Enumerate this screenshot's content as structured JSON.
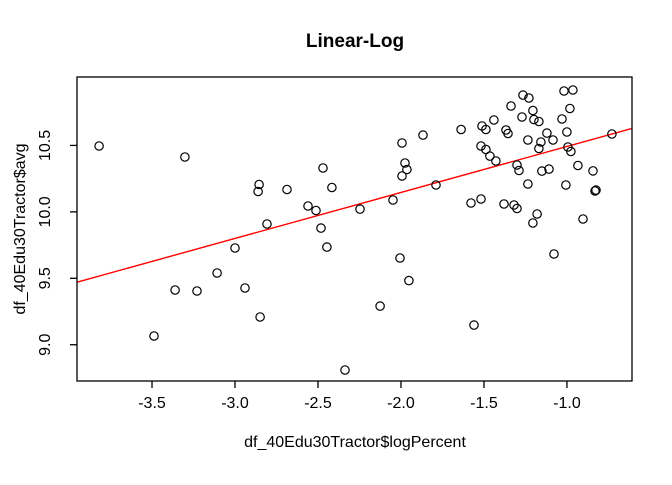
{
  "page": {
    "background": "#ffffff"
  },
  "chart_data": {
    "type": "scatter",
    "title": "Linear-Log",
    "xlabel": "df_40Edu30Tractor$logPercent",
    "ylabel": "df_40Edu30Tractor$avg",
    "xlim": [
      -3.952,
      -0.608
    ],
    "ylim": [
      8.727,
      11.015
    ],
    "grid": false,
    "legend": "none",
    "xticks": [
      {
        "value": -3.5,
        "label": "-3.5"
      },
      {
        "value": -3.0,
        "label": "-3.0"
      },
      {
        "value": -2.5,
        "label": "-2.5"
      },
      {
        "value": -2.0,
        "label": "-2.0"
      },
      {
        "value": -1.5,
        "label": "-1.5"
      },
      {
        "value": -1.0,
        "label": "-1.0"
      }
    ],
    "yticks": [
      {
        "value": 9.0,
        "label": "9.0"
      },
      {
        "value": 9.5,
        "label": "9.5"
      },
      {
        "value": 10.0,
        "label": "10.0"
      },
      {
        "value": 10.5,
        "label": "10.5"
      }
    ],
    "point_style": {
      "shape": "open-circle",
      "radius": 4.2,
      "stroke": "#000000"
    },
    "box_color": "#000000",
    "regression_line": {
      "slope": 0.346,
      "intercept": 10.838,
      "color": "#ff0000"
    },
    "points": [
      {
        "x": -3.819,
        "y": 10.496
      },
      {
        "x": -3.302,
        "y": 10.413
      },
      {
        "x": -3.488,
        "y": 9.066
      },
      {
        "x": -3.361,
        "y": 9.412
      },
      {
        "x": -3.229,
        "y": 9.404
      },
      {
        "x": -3.108,
        "y": 9.54
      },
      {
        "x": -3.0,
        "y": 9.728
      },
      {
        "x": -2.94,
        "y": 9.427
      },
      {
        "x": -2.855,
        "y": 10.206
      },
      {
        "x": -2.861,
        "y": 10.153
      },
      {
        "x": -2.849,
        "y": 9.209
      },
      {
        "x": -2.807,
        "y": 9.909
      },
      {
        "x": -2.687,
        "y": 10.168
      },
      {
        "x": -2.56,
        "y": 10.044
      },
      {
        "x": -2.512,
        "y": 10.01
      },
      {
        "x": -2.482,
        "y": 9.878
      },
      {
        "x": -2.47,
        "y": 10.33
      },
      {
        "x": -2.446,
        "y": 9.735
      },
      {
        "x": -2.416,
        "y": 10.183
      },
      {
        "x": -2.337,
        "y": 8.81
      },
      {
        "x": -2.247,
        "y": 10.021
      },
      {
        "x": -2.126,
        "y": 9.291
      },
      {
        "x": -2.048,
        "y": 10.089
      },
      {
        "x": -2.006,
        "y": 9.653
      },
      {
        "x": -1.994,
        "y": 10.518
      },
      {
        "x": -1.976,
        "y": 10.368
      },
      {
        "x": -1.964,
        "y": 10.319
      },
      {
        "x": -1.994,
        "y": 10.27
      },
      {
        "x": -1.952,
        "y": 9.483
      },
      {
        "x": -1.867,
        "y": 10.578
      },
      {
        "x": -1.789,
        "y": 10.202
      },
      {
        "x": -1.638,
        "y": 10.62
      },
      {
        "x": -1.578,
        "y": 10.067
      },
      {
        "x": -1.56,
        "y": 9.148
      },
      {
        "x": -1.518,
        "y": 10.496
      },
      {
        "x": -1.518,
        "y": 10.097
      },
      {
        "x": -1.512,
        "y": 10.646
      },
      {
        "x": -1.488,
        "y": 10.62
      },
      {
        "x": -1.488,
        "y": 10.469
      },
      {
        "x": -1.464,
        "y": 10.42
      },
      {
        "x": -1.44,
        "y": 10.691
      },
      {
        "x": -1.428,
        "y": 10.383
      },
      {
        "x": -1.379,
        "y": 10.059
      },
      {
        "x": -1.367,
        "y": 10.616
      },
      {
        "x": -1.355,
        "y": 10.59
      },
      {
        "x": -1.337,
        "y": 10.797
      },
      {
        "x": -1.319,
        "y": 10.052
      },
      {
        "x": -1.301,
        "y": 10.025
      },
      {
        "x": -1.301,
        "y": 10.353
      },
      {
        "x": -1.289,
        "y": 10.311
      },
      {
        "x": -1.271,
        "y": 10.714
      },
      {
        "x": -1.265,
        "y": 10.879
      },
      {
        "x": -1.235,
        "y": 10.21
      },
      {
        "x": -1.235,
        "y": 10.541
      },
      {
        "x": -1.229,
        "y": 10.857
      },
      {
        "x": -1.205,
        "y": 10.763
      },
      {
        "x": -1.205,
        "y": 9.916
      },
      {
        "x": -1.199,
        "y": 10.695
      },
      {
        "x": -1.18,
        "y": 9.984
      },
      {
        "x": -1.169,
        "y": 10.68
      },
      {
        "x": -1.169,
        "y": 10.477
      },
      {
        "x": -1.157,
        "y": 10.526
      },
      {
        "x": -1.151,
        "y": 10.307
      },
      {
        "x": -1.121,
        "y": 10.593
      },
      {
        "x": -1.108,
        "y": 10.322
      },
      {
        "x": -1.084,
        "y": 10.541
      },
      {
        "x": -1.078,
        "y": 9.683
      },
      {
        "x": -1.03,
        "y": 10.699
      },
      {
        "x": -1.018,
        "y": 10.91
      },
      {
        "x": -1.006,
        "y": 10.202
      },
      {
        "x": -1.0,
        "y": 10.601
      },
      {
        "x": -0.994,
        "y": 10.488
      },
      {
        "x": -0.982,
        "y": 10.778
      },
      {
        "x": -0.976,
        "y": 10.454
      },
      {
        "x": -0.964,
        "y": 10.917
      },
      {
        "x": -0.934,
        "y": 10.349
      },
      {
        "x": -0.903,
        "y": 9.946
      },
      {
        "x": -0.843,
        "y": 10.308
      },
      {
        "x": -0.831,
        "y": 10.157
      },
      {
        "x": -0.825,
        "y": 10.164
      },
      {
        "x": -0.729,
        "y": 10.586
      }
    ]
  }
}
